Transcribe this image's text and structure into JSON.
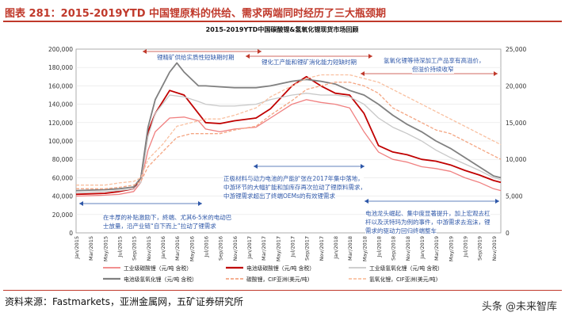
{
  "figure": {
    "title": "图表 281：2015-2019YTD 中国锂原料的供给、需求两端同时经历了三大瓶颈期",
    "source": "资料来源：Fastmarkets，亚洲金属网，五矿证券研究所",
    "watermark": "头条 @未来智库"
  },
  "colors": {
    "accent_red": "#c0392b",
    "annotation_blue": "#2e57a8",
    "series_carbonate_industrial": "#f08080",
    "series_carbonate_battery": "#c00000",
    "series_hydroxide_industrial": "#c8c8c8",
    "series_hydroxide_battery": "#808080",
    "series_carbonate_cif": "#f4a582",
    "series_hydroxide_cif": "#f9c0a0"
  },
  "annotations": {
    "a1": "锂精矿供给实质性短缺期时期",
    "a2": "锂化工产能和锂矿消化能力短缺时期",
    "a3_line1": "氢氧化锂等待深加工产品享有高溢价，",
    "a3_line2": "但溢价持续收窄",
    "a4_line1": "正极材料与动力电池的产能扩张在2017年集中落地，",
    "a4_line2": "中游环节的大幅扩能和加库存再次拉动了锂原料需求，",
    "a4_line3": "中游锂需求超出了终端OEMs的有效锂需求",
    "a5_line1": "电池龙头崛起、集中度显著提升，加上宏观去杠",
    "a5_line2": "杆以及沃特玛为例的事件，中游需求去泡沫，锂",
    "a5_line3": "需求的驱动力回归终端整车",
    "a6_line1": "在丰厚的补贴激励下，終端、尤其6-5米的电动巴",
    "a6_line2": "士放量，沿产业链“自下而上”拉动了锂需求"
  },
  "chart_data": {
    "type": "line",
    "title": "2015-2019YTD中国碳酸锂&氢氧化锂现货市场回顾",
    "y_left": {
      "min": 0,
      "max": 200000,
      "ticks": [
        "0",
        "20,000",
        "40,000",
        "60,000",
        "80,000",
        "100,000",
        "120,000",
        "140,000",
        "160,000",
        "180,000",
        "200,000"
      ]
    },
    "y_right": {
      "min": 0,
      "max": 25000,
      "ticks": [
        "0",
        "5,000",
        "10,000",
        "15,000",
        "20,000",
        "25,000"
      ]
    },
    "x_ticks": [
      "Jan/2015",
      "Mar/2015",
      "May/2015",
      "Jul/2015",
      "Sep/2015",
      "Nov/2015",
      "Jan/2016",
      "Mar/2016",
      "May/2016",
      "Jul/2016",
      "Sep/2016",
      "Nov/2016",
      "Jan/2017",
      "Mar/2017",
      "May/2017",
      "Jul/2017",
      "Sep/2017",
      "Nov/2017",
      "Jan/2018",
      "Mar/2018",
      "May/2018",
      "Jul/2018",
      "Sep/2018",
      "Nov/2018",
      "Jan/2019",
      "Mar/2019",
      "May/2019",
      "Jul/2019",
      "Sep/2019",
      "Nov/2019"
    ],
    "x_months": 59,
    "legend": [
      "工业级碳酸锂（元/吨 含税）",
      "电池级碳酸锂（元/吨 含税）",
      "工业级氢氧化锂（元/吨 含税）",
      "电池级氢氧化锂（元/吨 含税）",
      "碳酸锂，CIF亚洲(美元/吨)",
      "氢氧化锂，CIF亚洲(美元/吨)"
    ],
    "series": [
      {
        "name": "工业级碳酸锂（元/吨 含税）",
        "axis": "left",
        "dash": false,
        "width": 1.3,
        "points": [
          [
            0,
            40000
          ],
          [
            4,
            41000
          ],
          [
            6,
            42000
          ],
          [
            8,
            45000
          ],
          [
            9,
            55000
          ],
          [
            10,
            90000
          ],
          [
            11,
            110000
          ],
          [
            13,
            125000
          ],
          [
            15,
            126000
          ],
          [
            17,
            122000
          ],
          [
            18,
            113000
          ],
          [
            20,
            110000
          ],
          [
            22,
            113000
          ],
          [
            25,
            115000
          ],
          [
            27,
            125000
          ],
          [
            30,
            140000
          ],
          [
            32,
            145000
          ],
          [
            34,
            142000
          ],
          [
            36,
            140000
          ],
          [
            38,
            136000
          ],
          [
            40,
            110000
          ],
          [
            42,
            88000
          ],
          [
            44,
            80000
          ],
          [
            46,
            77000
          ],
          [
            48,
            72000
          ],
          [
            50,
            70000
          ],
          [
            52,
            67000
          ],
          [
            54,
            60000
          ],
          [
            56,
            55000
          ],
          [
            58,
            48000
          ],
          [
            59,
            46000
          ]
        ]
      },
      {
        "name": "电池级碳酸锂（元/吨 含税）",
        "axis": "left",
        "dash": false,
        "width": 1.8,
        "points": [
          [
            0,
            42000
          ],
          [
            4,
            43000
          ],
          [
            6,
            45000
          ],
          [
            8,
            48000
          ],
          [
            9,
            60000
          ],
          [
            10,
            110000
          ],
          [
            11,
            130000
          ],
          [
            13,
            155000
          ],
          [
            15,
            150000
          ],
          [
            17,
            130000
          ],
          [
            18,
            120000
          ],
          [
            20,
            119000
          ],
          [
            22,
            122000
          ],
          [
            25,
            125000
          ],
          [
            27,
            135000
          ],
          [
            30,
            160000
          ],
          [
            32,
            170000
          ],
          [
            34,
            160000
          ],
          [
            36,
            152000
          ],
          [
            38,
            150000
          ],
          [
            40,
            130000
          ],
          [
            42,
            95000
          ],
          [
            44,
            88000
          ],
          [
            46,
            85000
          ],
          [
            48,
            80000
          ],
          [
            50,
            78000
          ],
          [
            52,
            74000
          ],
          [
            54,
            68000
          ],
          [
            56,
            63000
          ],
          [
            58,
            57000
          ],
          [
            59,
            55000
          ]
        ]
      },
      {
        "name": "工业级氢氧化锂（元/吨 含税）",
        "axis": "left",
        "dash": false,
        "width": 1.3,
        "points": [
          [
            0,
            44000
          ],
          [
            4,
            45000
          ],
          [
            6,
            46000
          ],
          [
            8,
            48000
          ],
          [
            9,
            55000
          ],
          [
            10,
            105000
          ],
          [
            11,
            130000
          ],
          [
            13,
            150000
          ],
          [
            15,
            148000
          ],
          [
            17,
            143000
          ],
          [
            18,
            140000
          ],
          [
            20,
            138000
          ],
          [
            22,
            138000
          ],
          [
            25,
            140000
          ],
          [
            27,
            145000
          ],
          [
            30,
            150000
          ],
          [
            32,
            152000
          ],
          [
            34,
            150000
          ],
          [
            36,
            150000
          ],
          [
            38,
            148000
          ],
          [
            40,
            140000
          ],
          [
            42,
            125000
          ],
          [
            44,
            115000
          ],
          [
            46,
            108000
          ],
          [
            48,
            100000
          ],
          [
            50,
            90000
          ],
          [
            52,
            82000
          ],
          [
            54,
            75000
          ],
          [
            56,
            68000
          ],
          [
            58,
            60000
          ],
          [
            59,
            58000
          ]
        ]
      },
      {
        "name": "电池级氢氧化锂（元/吨 含税）",
        "axis": "left",
        "dash": false,
        "width": 1.8,
        "points": [
          [
            0,
            46000
          ],
          [
            4,
            47000
          ],
          [
            6,
            48000
          ],
          [
            8,
            50000
          ],
          [
            9,
            60000
          ],
          [
            10,
            115000
          ],
          [
            11,
            145000
          ],
          [
            13,
            175000
          ],
          [
            14,
            185000
          ],
          [
            15,
            175000
          ],
          [
            17,
            160000
          ],
          [
            18,
            160000
          ],
          [
            20,
            159000
          ],
          [
            22,
            158000
          ],
          [
            25,
            158000
          ],
          [
            27,
            160000
          ],
          [
            30,
            165000
          ],
          [
            32,
            167000
          ],
          [
            34,
            165000
          ],
          [
            36,
            162000
          ],
          [
            38,
            155000
          ],
          [
            40,
            150000
          ],
          [
            42,
            140000
          ],
          [
            44,
            128000
          ],
          [
            46,
            118000
          ],
          [
            48,
            110000
          ],
          [
            50,
            100000
          ],
          [
            52,
            92000
          ],
          [
            54,
            82000
          ],
          [
            56,
            72000
          ],
          [
            58,
            62000
          ],
          [
            59,
            60000
          ]
        ]
      },
      {
        "name": "碳酸锂，CIF亚洲(美元/吨)",
        "axis": "right",
        "dash": true,
        "width": 1.3,
        "points": [
          [
            0,
            6000
          ],
          [
            4,
            6000
          ],
          [
            6,
            6200
          ],
          [
            8,
            6500
          ],
          [
            9,
            7000
          ],
          [
            10,
            9000
          ],
          [
            12,
            11000
          ],
          [
            14,
            13000
          ],
          [
            16,
            13500
          ],
          [
            18,
            13500
          ],
          [
            20,
            13500
          ],
          [
            22,
            14000
          ],
          [
            25,
            14500
          ],
          [
            27,
            16000
          ],
          [
            30,
            18000
          ],
          [
            32,
            19500
          ],
          [
            34,
            20000
          ],
          [
            36,
            20500
          ],
          [
            38,
            20500
          ],
          [
            40,
            20000
          ],
          [
            42,
            19000
          ],
          [
            44,
            17000
          ],
          [
            46,
            16000
          ],
          [
            48,
            15000
          ],
          [
            50,
            14000
          ],
          [
            52,
            13500
          ],
          [
            54,
            12500
          ],
          [
            56,
            11500
          ],
          [
            58,
            10500
          ],
          [
            59,
            10000
          ]
        ]
      },
      {
        "name": "氢氧化锂，CIF亚洲(美元/吨)",
        "axis": "right",
        "dash": true,
        "width": 1.3,
        "points": [
          [
            0,
            6500
          ],
          [
            4,
            6500
          ],
          [
            6,
            6800
          ],
          [
            8,
            7000
          ],
          [
            9,
            7500
          ],
          [
            10,
            10000
          ],
          [
            12,
            12000
          ],
          [
            14,
            14500
          ],
          [
            16,
            15000
          ],
          [
            18,
            15500
          ],
          [
            20,
            15500
          ],
          [
            22,
            16000
          ],
          [
            25,
            17000
          ],
          [
            27,
            18500
          ],
          [
            30,
            20000
          ],
          [
            32,
            21000
          ],
          [
            34,
            21500
          ],
          [
            36,
            21500
          ],
          [
            38,
            21500
          ],
          [
            40,
            21000
          ],
          [
            42,
            20500
          ],
          [
            44,
            19500
          ],
          [
            46,
            18500
          ],
          [
            48,
            17500
          ],
          [
            50,
            16500
          ],
          [
            52,
            15500
          ],
          [
            54,
            14500
          ],
          [
            56,
            13500
          ],
          [
            58,
            12500
          ],
          [
            59,
            12000
          ]
        ]
      }
    ]
  }
}
